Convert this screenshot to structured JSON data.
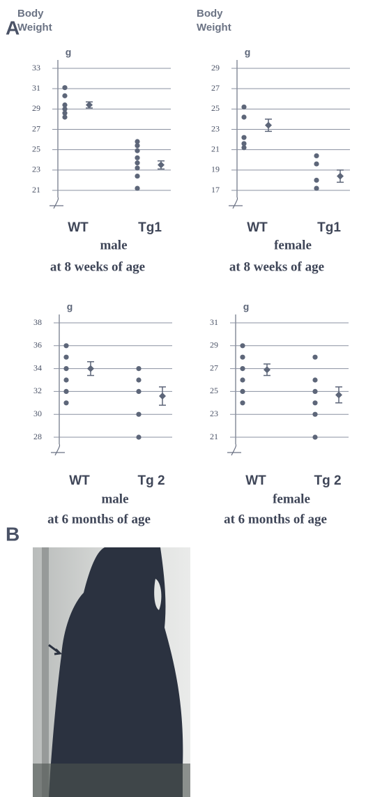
{
  "figure": {
    "label_a": "A",
    "label_b": "B"
  },
  "chart_data": [
    {
      "type": "dot",
      "y_label": "Body Weight",
      "y_unit": "g",
      "categories": [
        "WT",
        "Tg1"
      ],
      "subtitle": "male",
      "note": "at 8 weeks of age",
      "values": [
        [
          31.1,
          30.3,
          29.4,
          29.0,
          28.6,
          28.2
        ],
        [
          25.8,
          25.4,
          24.9,
          24.2,
          23.7,
          23.2,
          22.4,
          21.2
        ]
      ],
      "means": [
        29.4,
        23.5
      ],
      "errors": [
        0.3,
        0.4
      ],
      "ylim": [
        21,
        33
      ],
      "yticks": [
        21,
        23,
        25,
        27,
        29,
        31,
        33
      ],
      "grid": true,
      "color": "#5d6679"
    },
    {
      "type": "dot",
      "y_label": "Body Weight",
      "y_unit": "g",
      "categories": [
        "WT",
        "Tg1"
      ],
      "subtitle": "female",
      "note": "at 8 weeks of age",
      "values": [
        [
          25.2,
          24.2,
          22.2,
          21.6,
          21.2
        ],
        [
          20.4,
          19.6,
          18.0,
          17.2
        ]
      ],
      "means": [
        23.4,
        18.4
      ],
      "errors": [
        0.6,
        0.6
      ],
      "ylim": [
        17,
        29
      ],
      "yticks": [
        17,
        19,
        21,
        23,
        25,
        27,
        29
      ],
      "grid": true,
      "color": "#5d6679"
    },
    {
      "type": "dot",
      "y_unit": "g",
      "categories": [
        "WT",
        "Tg 2"
      ],
      "subtitle": "male",
      "note": "at  6 months of age",
      "values": [
        [
          36,
          35,
          34,
          33,
          32,
          31
        ],
        [
          34,
          33,
          32,
          30,
          28
        ]
      ],
      "means": [
        34,
        31.6
      ],
      "errors": [
        0.6,
        0.8
      ],
      "ylim": [
        28,
        38
      ],
      "yticks": [
        28,
        30,
        32,
        34,
        36,
        38
      ],
      "grid": true,
      "color": "#5d6679"
    },
    {
      "type": "dot",
      "y_unit": "g",
      "categories": [
        "WT",
        "Tg 2"
      ],
      "subtitle": "female",
      "note": "at  6 months of age",
      "values": [
        [
          29,
          28,
          27,
          26,
          25,
          24
        ],
        [
          28,
          26,
          25,
          24,
          23,
          21
        ]
      ],
      "means": [
        26.9,
        24.7
      ],
      "errors": [
        0.5,
        0.7
      ],
      "ylim": [
        21,
        31
      ],
      "yticks": [
        21,
        23,
        25,
        27,
        29,
        31
      ],
      "grid": true,
      "color": "#5d6679"
    }
  ]
}
